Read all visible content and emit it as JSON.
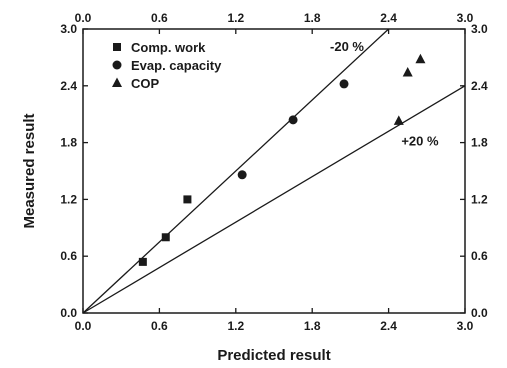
{
  "chart_data": {
    "type": "scatter",
    "xlabel": "Predicted result",
    "ylabel": "Measured result",
    "xlim": [
      0.0,
      3.0
    ],
    "ylim": [
      0.0,
      3.0
    ],
    "x_ticks": [
      "0.0",
      "0.6",
      "1.2",
      "1.8",
      "2.4",
      "3.0"
    ],
    "y_ticks": [
      "0.0",
      "0.6",
      "1.2",
      "1.8",
      "2.4",
      "3.0"
    ],
    "mirror_axes": true,
    "grid": false,
    "legend_position": "top-left",
    "series": [
      {
        "name": "Comp. work",
        "marker": "square",
        "points": [
          [
            0.47,
            0.54
          ],
          [
            0.65,
            0.8
          ],
          [
            0.82,
            1.2
          ]
        ]
      },
      {
        "name": "Evap. capacity",
        "marker": "circle",
        "points": [
          [
            1.25,
            1.46
          ],
          [
            1.65,
            2.04
          ],
          [
            2.05,
            2.42
          ]
        ]
      },
      {
        "name": "COP",
        "marker": "triangle",
        "points": [
          [
            2.48,
            2.03
          ],
          [
            2.55,
            2.54
          ],
          [
            2.65,
            2.68
          ]
        ]
      }
    ],
    "reference_lines": [
      {
        "label": "-20 %",
        "slope": 1.25
      },
      {
        "label": "+20 %",
        "slope": 0.8
      }
    ],
    "marker_color": "#1a1a1a"
  }
}
